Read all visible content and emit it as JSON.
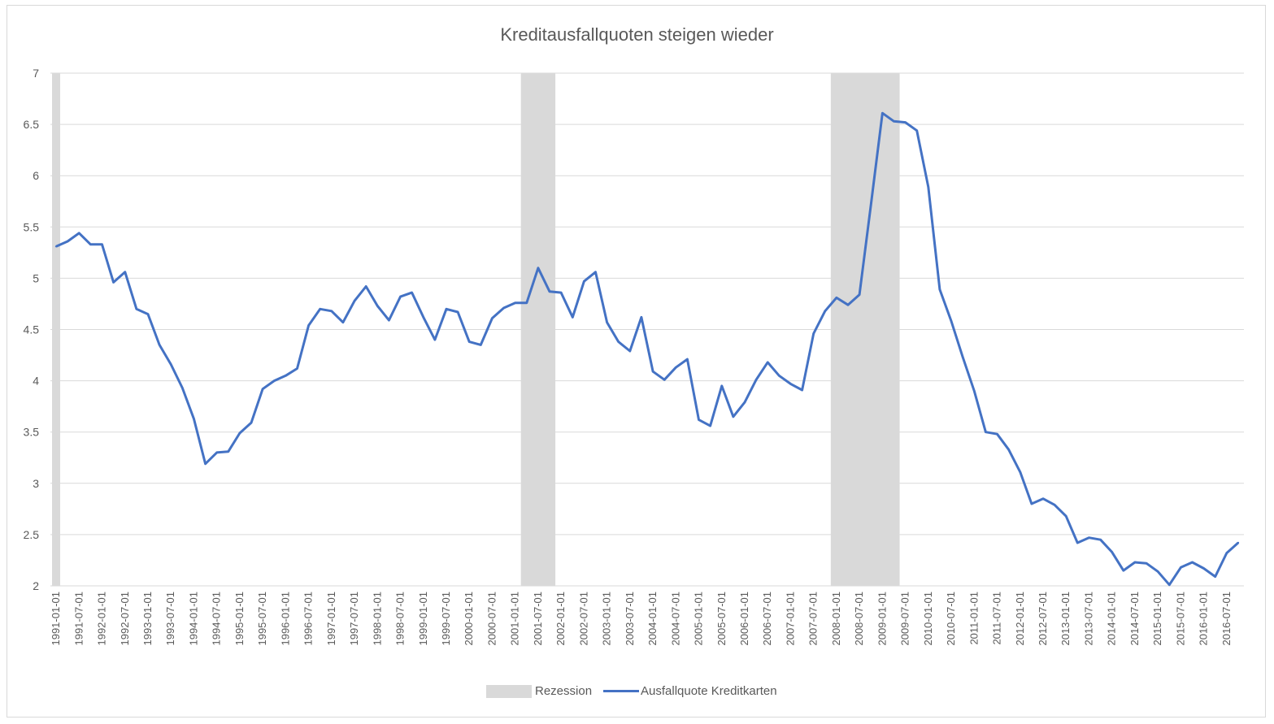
{
  "chart_data": {
    "type": "line",
    "title": "Kreditausfallquoten steigen wieder",
    "xlabel": "",
    "ylabel": "",
    "ylim": [
      2,
      7
    ],
    "yticks": [
      "2",
      "2.5",
      "3",
      "3.5",
      "4",
      "4.5",
      "5",
      "5.5",
      "6",
      "6.5",
      "7"
    ],
    "grid": true,
    "legend_position": "bottom",
    "colors": {
      "line": "#4472c4",
      "recession": "#d9d9d9",
      "grid": "#d9d9d9",
      "text": "#595959"
    },
    "categories": [
      "1991-01-01",
      "1991-04-01",
      "1991-07-01",
      "1991-10-01",
      "1992-01-01",
      "1992-04-01",
      "1992-07-01",
      "1992-10-01",
      "1993-01-01",
      "1993-04-01",
      "1993-07-01",
      "1993-10-01",
      "1994-01-01",
      "1994-04-01",
      "1994-07-01",
      "1994-10-01",
      "1995-01-01",
      "1995-04-01",
      "1995-07-01",
      "1995-10-01",
      "1996-01-01",
      "1996-04-01",
      "1996-07-01",
      "1996-10-01",
      "1997-01-01",
      "1997-04-01",
      "1997-07-01",
      "1997-10-01",
      "1998-01-01",
      "1998-04-01",
      "1998-07-01",
      "1998-10-01",
      "1999-01-01",
      "1999-04-01",
      "1999-07-01",
      "1999-10-01",
      "2000-01-01",
      "2000-04-01",
      "2000-07-01",
      "2000-10-01",
      "2001-01-01",
      "2001-04-01",
      "2001-07-01",
      "2001-10-01",
      "2002-01-01",
      "2002-04-01",
      "2002-07-01",
      "2002-10-01",
      "2003-01-01",
      "2003-04-01",
      "2003-07-01",
      "2003-10-01",
      "2004-01-01",
      "2004-04-01",
      "2004-07-01",
      "2004-10-01",
      "2005-01-01",
      "2005-04-01",
      "2005-07-01",
      "2005-10-01",
      "2006-01-01",
      "2006-04-01",
      "2006-07-01",
      "2006-10-01",
      "2007-01-01",
      "2007-04-01",
      "2007-07-01",
      "2007-10-01",
      "2008-01-01",
      "2008-04-01",
      "2008-07-01",
      "2008-10-01",
      "2009-01-01",
      "2009-04-01",
      "2009-07-01",
      "2009-10-01",
      "2010-01-01",
      "2010-04-01",
      "2010-07-01",
      "2010-10-01",
      "2011-01-01",
      "2011-04-01",
      "2011-07-01",
      "2011-10-01",
      "2012-01-01",
      "2012-04-01",
      "2012-07-01",
      "2012-10-01",
      "2013-01-01",
      "2013-04-01",
      "2013-07-01",
      "2013-10-01",
      "2014-01-01",
      "2014-04-01",
      "2014-07-01",
      "2014-10-01",
      "2015-01-01",
      "2015-04-01",
      "2015-07-01",
      "2015-10-01",
      "2016-01-01",
      "2016-04-01",
      "2016-07-01",
      "2016-10-01"
    ],
    "series": [
      {
        "name": "Ausfallquote Kreditkarten",
        "values": [
          5.31,
          5.36,
          5.44,
          5.33,
          5.33,
          4.96,
          5.06,
          4.7,
          4.65,
          4.35,
          4.16,
          3.93,
          3.63,
          3.19,
          3.3,
          3.31,
          3.49,
          3.59,
          3.92,
          4.0,
          4.05,
          4.12,
          4.54,
          4.7,
          4.68,
          4.57,
          4.78,
          4.92,
          4.73,
          4.59,
          4.82,
          4.86,
          4.62,
          4.4,
          4.7,
          4.67,
          4.38,
          4.35,
          4.61,
          4.71,
          4.76,
          4.76,
          5.1,
          4.87,
          4.86,
          4.62,
          4.97,
          5.06,
          4.57,
          4.38,
          4.29,
          4.62,
          4.09,
          4.01,
          4.13,
          4.21,
          3.62,
          3.56,
          3.95,
          3.65,
          3.79,
          4.01,
          4.18,
          4.05,
          3.97,
          3.91,
          4.46,
          4.68,
          4.81,
          4.74,
          4.84,
          5.72,
          6.61,
          6.53,
          6.52,
          6.44,
          5.89,
          4.89,
          4.58,
          4.23,
          3.9,
          3.5,
          3.48,
          3.33,
          3.11,
          2.8,
          2.85,
          2.79,
          2.68,
          2.42,
          2.47,
          2.45,
          2.33,
          2.15,
          2.23,
          2.22,
          2.14,
          2.01,
          2.18,
          2.23,
          2.17,
          2.09,
          2.32,
          2.42
        ]
      }
    ],
    "recession_periods": [
      [
        "1991-01-01",
        "1991-01-01"
      ],
      [
        "2001-04-01",
        "2001-10-01"
      ],
      [
        "2008-01-01",
        "2009-04-01"
      ]
    ],
    "xtick_labels": [
      "1991-01-01",
      "1991-07-01",
      "1992-01-01",
      "1992-07-01",
      "1993-01-01",
      "1993-07-01",
      "1994-01-01",
      "1994-07-01",
      "1995-01-01",
      "1995-07-01",
      "1996-01-01",
      "1996-07-01",
      "1997-01-01",
      "1997-07-01",
      "1998-01-01",
      "1998-07-01",
      "1999-01-01",
      "1999-07-01",
      "2000-01-01",
      "2000-07-01",
      "2001-01-01",
      "2001-07-01",
      "2002-01-01",
      "2002-07-01",
      "2003-01-01",
      "2003-07-01",
      "2004-01-01",
      "2004-07-01",
      "2005-01-01",
      "2005-07-01",
      "2006-01-01",
      "2006-07-01",
      "2007-01-01",
      "2007-07-01",
      "2008-01-01",
      "2008-07-01",
      "2009-01-01",
      "2009-07-01",
      "2010-01-01",
      "2010-07-01",
      "2011-01-01",
      "2011-07-01",
      "2012-01-01",
      "2012-07-01",
      "2013-01-01",
      "2013-07-01",
      "2014-01-01",
      "2014-07-01",
      "2015-01-01",
      "2015-07-01",
      "2016-01-01",
      "2016-07-01"
    ],
    "legend": [
      {
        "label": "Rezession",
        "kind": "area"
      },
      {
        "label": "Ausfallquote Kreditkarten",
        "kind": "line"
      }
    ]
  }
}
